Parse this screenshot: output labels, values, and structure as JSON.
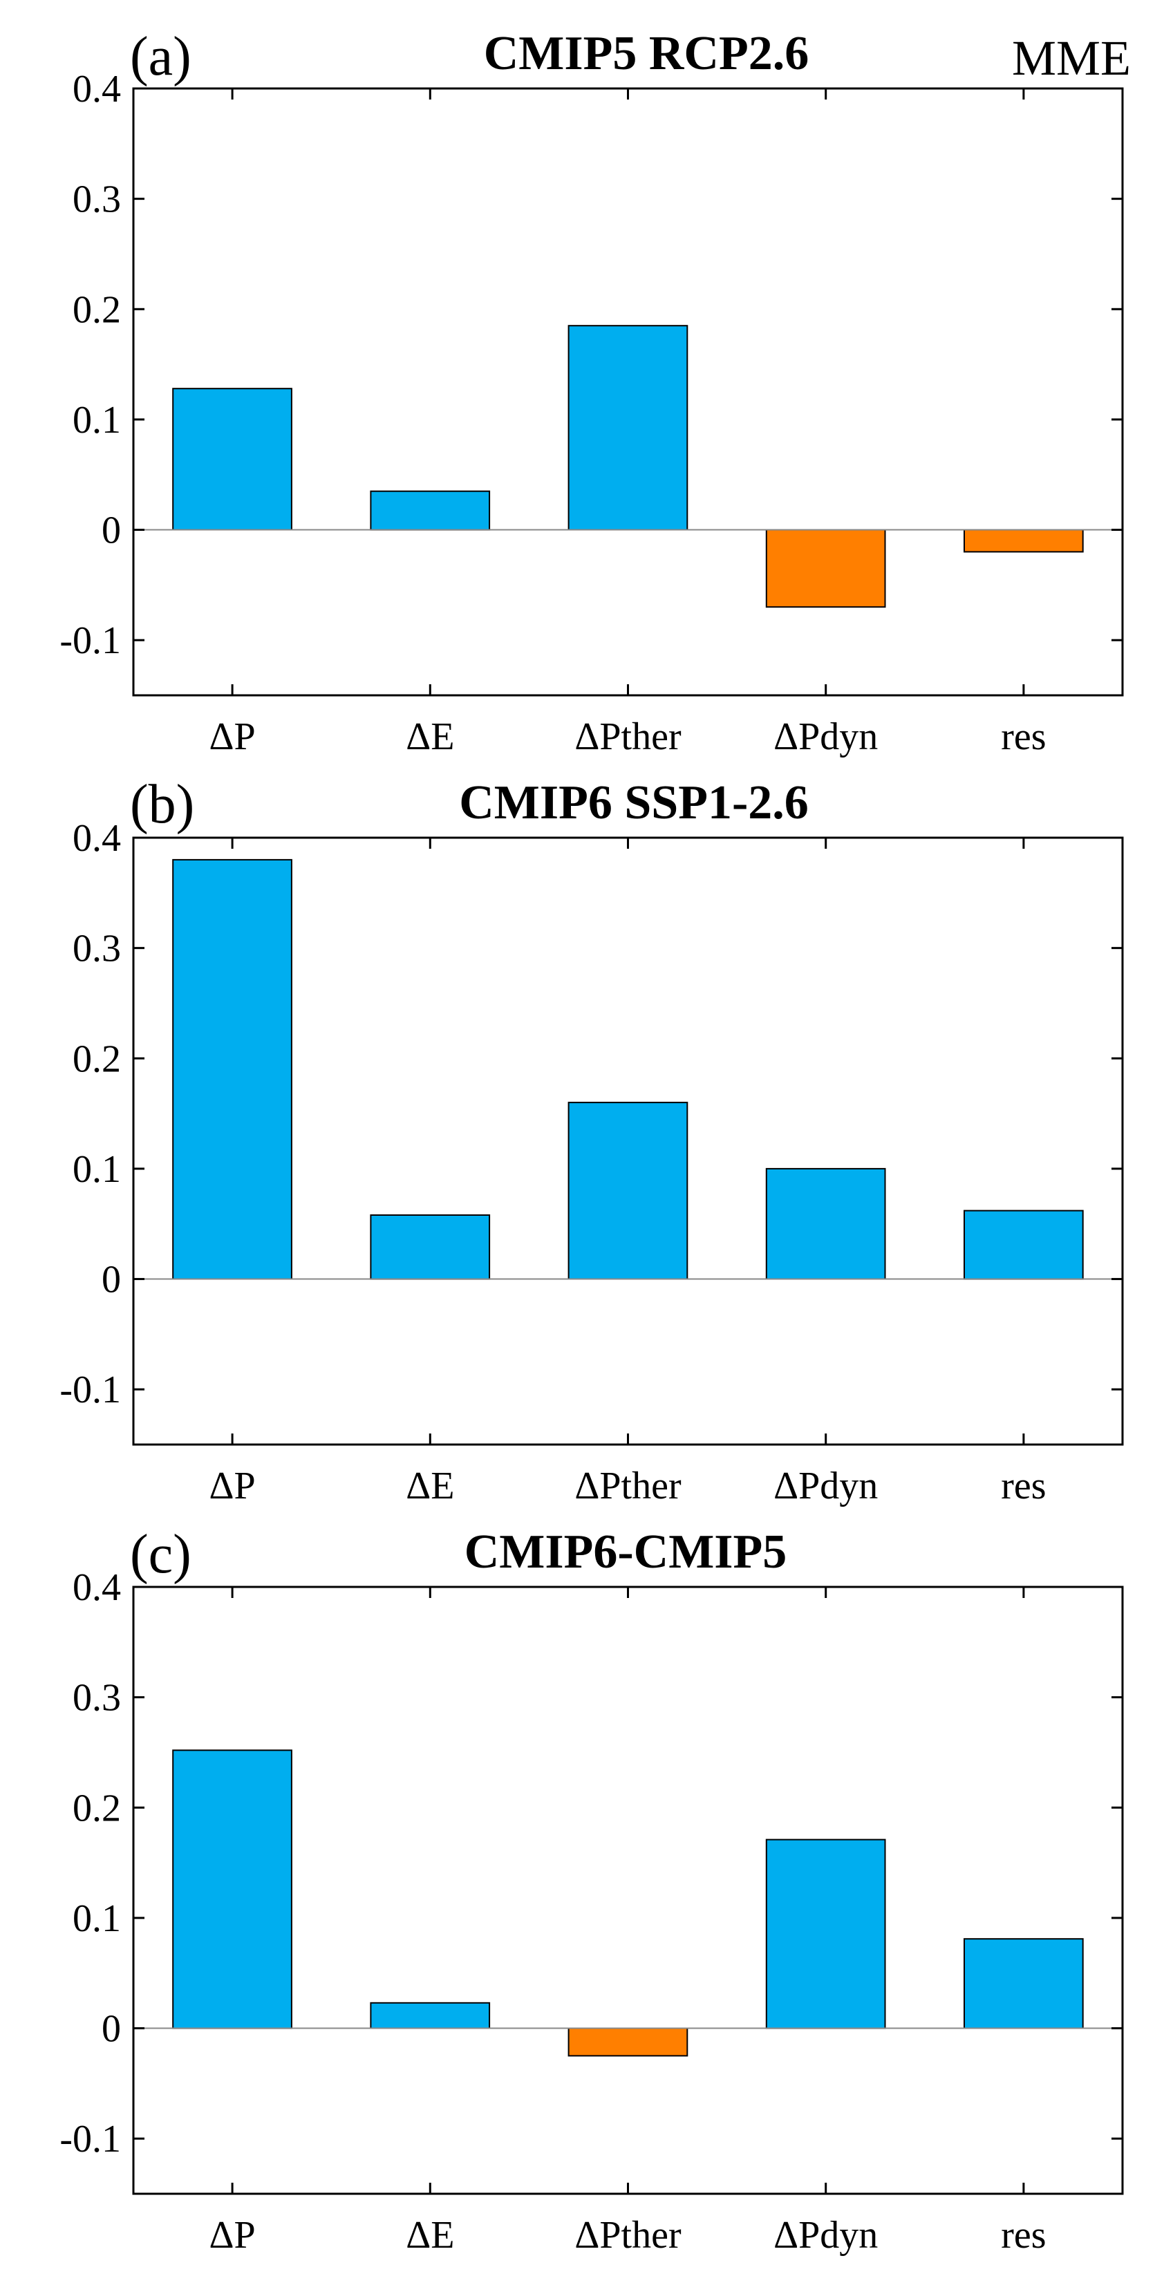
{
  "figure_label": "MME",
  "colors": {
    "positive": "#00AEEF",
    "negative": "#FF7F00",
    "axis": "#000000",
    "zero_line": "#888888"
  },
  "chart_data": [
    {
      "type": "bar",
      "panel_label": "(a)",
      "title": "CMIP5 RCP2.6",
      "categories": [
        "ΔP",
        "ΔE",
        "ΔPther",
        "ΔPdyn",
        "res"
      ],
      "values": [
        0.128,
        0.035,
        0.185,
        -0.07,
        -0.02
      ],
      "yticks": [
        "0.4",
        "0.3",
        "0.2",
        "0.1",
        "0",
        "-0.1"
      ],
      "ylim": [
        -0.15,
        0.4
      ],
      "xlabel": "",
      "ylabel": "",
      "grid": false
    },
    {
      "type": "bar",
      "panel_label": "(b)",
      "title": "CMIP6 SSP1-2.6",
      "categories": [
        "ΔP",
        "ΔE",
        "ΔPther",
        "ΔPdyn",
        "res"
      ],
      "values": [
        0.38,
        0.058,
        0.16,
        0.1,
        0.062
      ],
      "yticks": [
        "0.4",
        "0.3",
        "0.2",
        "0.1",
        "0",
        "-0.1"
      ],
      "ylim": [
        -0.15,
        0.4
      ],
      "xlabel": "",
      "ylabel": "",
      "grid": false
    },
    {
      "type": "bar",
      "panel_label": "(c)",
      "title": "CMIP6-CMIP5",
      "categories": [
        "ΔP",
        "ΔE",
        "ΔPther",
        "ΔPdyn",
        "res"
      ],
      "values": [
        0.252,
        0.023,
        -0.025,
        0.171,
        0.081
      ],
      "yticks": [
        "0.4",
        "0.3",
        "0.2",
        "0.1",
        "0",
        "-0.1"
      ],
      "ylim": [
        -0.15,
        0.4
      ],
      "xlabel": "",
      "ylabel": "",
      "grid": false
    }
  ]
}
